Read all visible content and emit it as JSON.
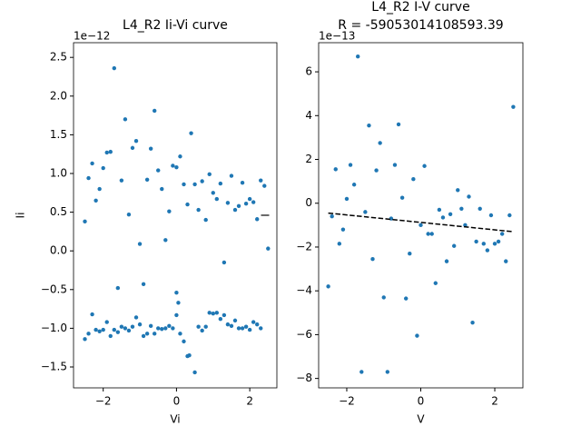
{
  "chart_data": [
    {
      "type": "scatter",
      "title": "L4_R2 Ii-Vi curve",
      "x_label": "Vi",
      "y_label": "Ii",
      "offset_label": "1e−12",
      "color": "#1f77b4",
      "xlim": [
        -2.81,
        2.74
      ],
      "ylim": [
        -1.77,
        2.69
      ],
      "xticks": [
        {
          "value": -2,
          "label": "−2"
        },
        0,
        2
      ],
      "yticks": [
        {
          "value": -1.5,
          "label": "−1.5"
        },
        {
          "value": -1.0,
          "label": "−1.0"
        },
        {
          "value": -0.5,
          "label": "−0.5"
        },
        {
          "value": 0.0,
          "label": "0.0"
        },
        0.5,
        {
          "value": 1.0,
          "label": "1.0"
        },
        1.5,
        {
          "value": 2.0,
          "label": "2.0"
        },
        2.5
      ],
      "series": [
        {
          "name": null,
          "color": "#1f77b4",
          "x": [
            -2.5,
            -2.4,
            -2.3,
            -2.2,
            -2.1,
            -2.0,
            -1.9,
            -1.8,
            -1.7,
            -1.6,
            -1.5,
            -1.4,
            -1.3,
            -1.2,
            -1.1,
            -1.0,
            -0.9,
            -0.8,
            -0.7,
            -0.6,
            -0.5,
            -0.4,
            -0.3,
            -0.2,
            -0.1,
            0.0,
            0.1,
            0.2,
            0.3,
            0.4,
            0.5,
            0.6,
            0.7,
            0.8,
            0.9,
            1.0,
            1.1,
            1.2,
            1.3,
            1.4,
            1.5,
            1.6,
            1.7,
            1.8,
            1.9,
            2.0,
            2.1,
            2.2,
            2.3,
            2.4,
            2.5,
            -2.5,
            -2.4,
            -2.3,
            -2.2,
            -2.1,
            -2.0,
            -1.9,
            -1.8,
            -1.7,
            -1.6,
            -1.5,
            -1.4,
            -1.3,
            -1.2,
            -1.1,
            -1.0,
            -0.9,
            -0.8,
            -0.7,
            -0.6,
            -0.5,
            -0.4,
            -0.3,
            -0.2,
            -0.1,
            0.0,
            0.05,
            0.0,
            0.1,
            0.2,
            0.3,
            0.35,
            0.5,
            0.6,
            0.7,
            0.8,
            0.9,
            1.0,
            1.1,
            1.2,
            1.3,
            1.4,
            1.5,
            1.6,
            1.7,
            1.8,
            1.9,
            2.0,
            2.1,
            2.2,
            2.3
          ],
          "values": [
            0.38,
            0.94,
            1.13,
            0.65,
            0.8,
            1.07,
            1.27,
            1.28,
            2.36,
            -0.48,
            0.91,
            1.7,
            0.47,
            1.33,
            1.42,
            0.09,
            -0.43,
            0.92,
            1.32,
            1.81,
            1.04,
            0.8,
            0.14,
            0.51,
            1.1,
            1.08,
            1.22,
            0.86,
            0.6,
            1.52,
            0.86,
            0.53,
            0.9,
            0.4,
            0.99,
            0.75,
            0.67,
            0.87,
            -0.15,
            0.62,
            0.97,
            0.53,
            0.58,
            0.88,
            0.61,
            0.67,
            0.63,
            0.41,
            0.91,
            0.84,
            0.03,
            -1.14,
            -1.07,
            -0.82,
            -1.02,
            -1.04,
            -1.02,
            -0.92,
            -1.1,
            -1.02,
            -1.05,
            -0.98,
            -1.0,
            -1.03,
            -0.98,
            -0.86,
            -0.95,
            -1.1,
            -1.07,
            -0.97,
            -1.07,
            -1.0,
            -1.01,
            -1.0,
            -0.97,
            -1.0,
            -0.54,
            -0.67,
            -0.83,
            -1.07,
            -1.17,
            -1.36,
            -1.35,
            -1.57,
            -0.98,
            -1.03,
            -0.98,
            -0.8,
            -0.81,
            -0.8,
            -0.88,
            -0.83,
            -0.95,
            -0.97,
            -0.9,
            -1.0,
            -1.0,
            -0.98,
            -1.02,
            -0.92,
            -0.95,
            -1.0
          ]
        }
      ]
    },
    {
      "type": "scatter",
      "title": "L4_R2 I-V curve",
      "subtitle": "R = -59053014108593.39",
      "x_label": "V",
      "y_label": "I",
      "offset_label": "1e−13",
      "color": "#1f77b4",
      "xlim": [
        -2.76,
        2.76
      ],
      "ylim": [
        -8.43,
        7.33
      ],
      "xticks": [
        {
          "value": -2,
          "label": "−2"
        },
        0,
        2
      ],
      "yticks": [
        {
          "value": -8,
          "label": "−8"
        },
        {
          "value": -6,
          "label": "−6"
        },
        {
          "value": -4,
          "label": "−4"
        },
        {
          "value": -2,
          "label": "−2"
        },
        0,
        2,
        4,
        6
      ],
      "series": [
        {
          "name": null,
          "color": "#1f77b4",
          "x": [
            -2.5,
            -2.4,
            -2.3,
            -2.2,
            -2.1,
            -2.0,
            -1.9,
            -1.8,
            -1.7,
            -1.6,
            -1.5,
            -1.4,
            -1.3,
            -1.2,
            -1.1,
            -1.0,
            -0.9,
            -0.8,
            -0.7,
            -0.6,
            -0.5,
            -0.4,
            -0.3,
            -0.2,
            -0.1,
            0.0,
            0.1,
            0.2,
            0.3,
            0.4,
            0.5,
            0.6,
            0.7,
            0.8,
            0.9,
            1.0,
            1.1,
            1.2,
            1.3,
            1.4,
            1.5,
            1.6,
            1.7,
            1.8,
            1.9,
            2.0,
            2.1,
            2.2,
            2.3,
            2.4,
            2.5
          ],
          "values": [
            -3.8,
            -0.6,
            1.55,
            -1.85,
            -1.2,
            0.2,
            1.75,
            0.85,
            6.7,
            -7.7,
            -0.4,
            3.55,
            -2.55,
            1.5,
            2.75,
            -4.3,
            -7.7,
            -0.7,
            1.75,
            3.6,
            0.25,
            -4.35,
            -2.3,
            1.1,
            -6.05,
            -1.0,
            1.7,
            -1.4,
            -1.4,
            -3.65,
            -0.3,
            -0.65,
            -2.65,
            -0.5,
            -1.95,
            0.6,
            -0.25,
            -1.0,
            0.3,
            -5.45,
            -1.75,
            -0.25,
            -1.85,
            -2.15,
            -0.55,
            -1.85,
            -1.75,
            -1.4,
            -2.65,
            -0.55,
            4.4
          ]
        }
      ],
      "fit": {
        "color": "#000000",
        "x": [
          -2.5,
          2.5
        ],
        "values": [
          -0.45,
          -1.3
        ]
      }
    }
  ]
}
